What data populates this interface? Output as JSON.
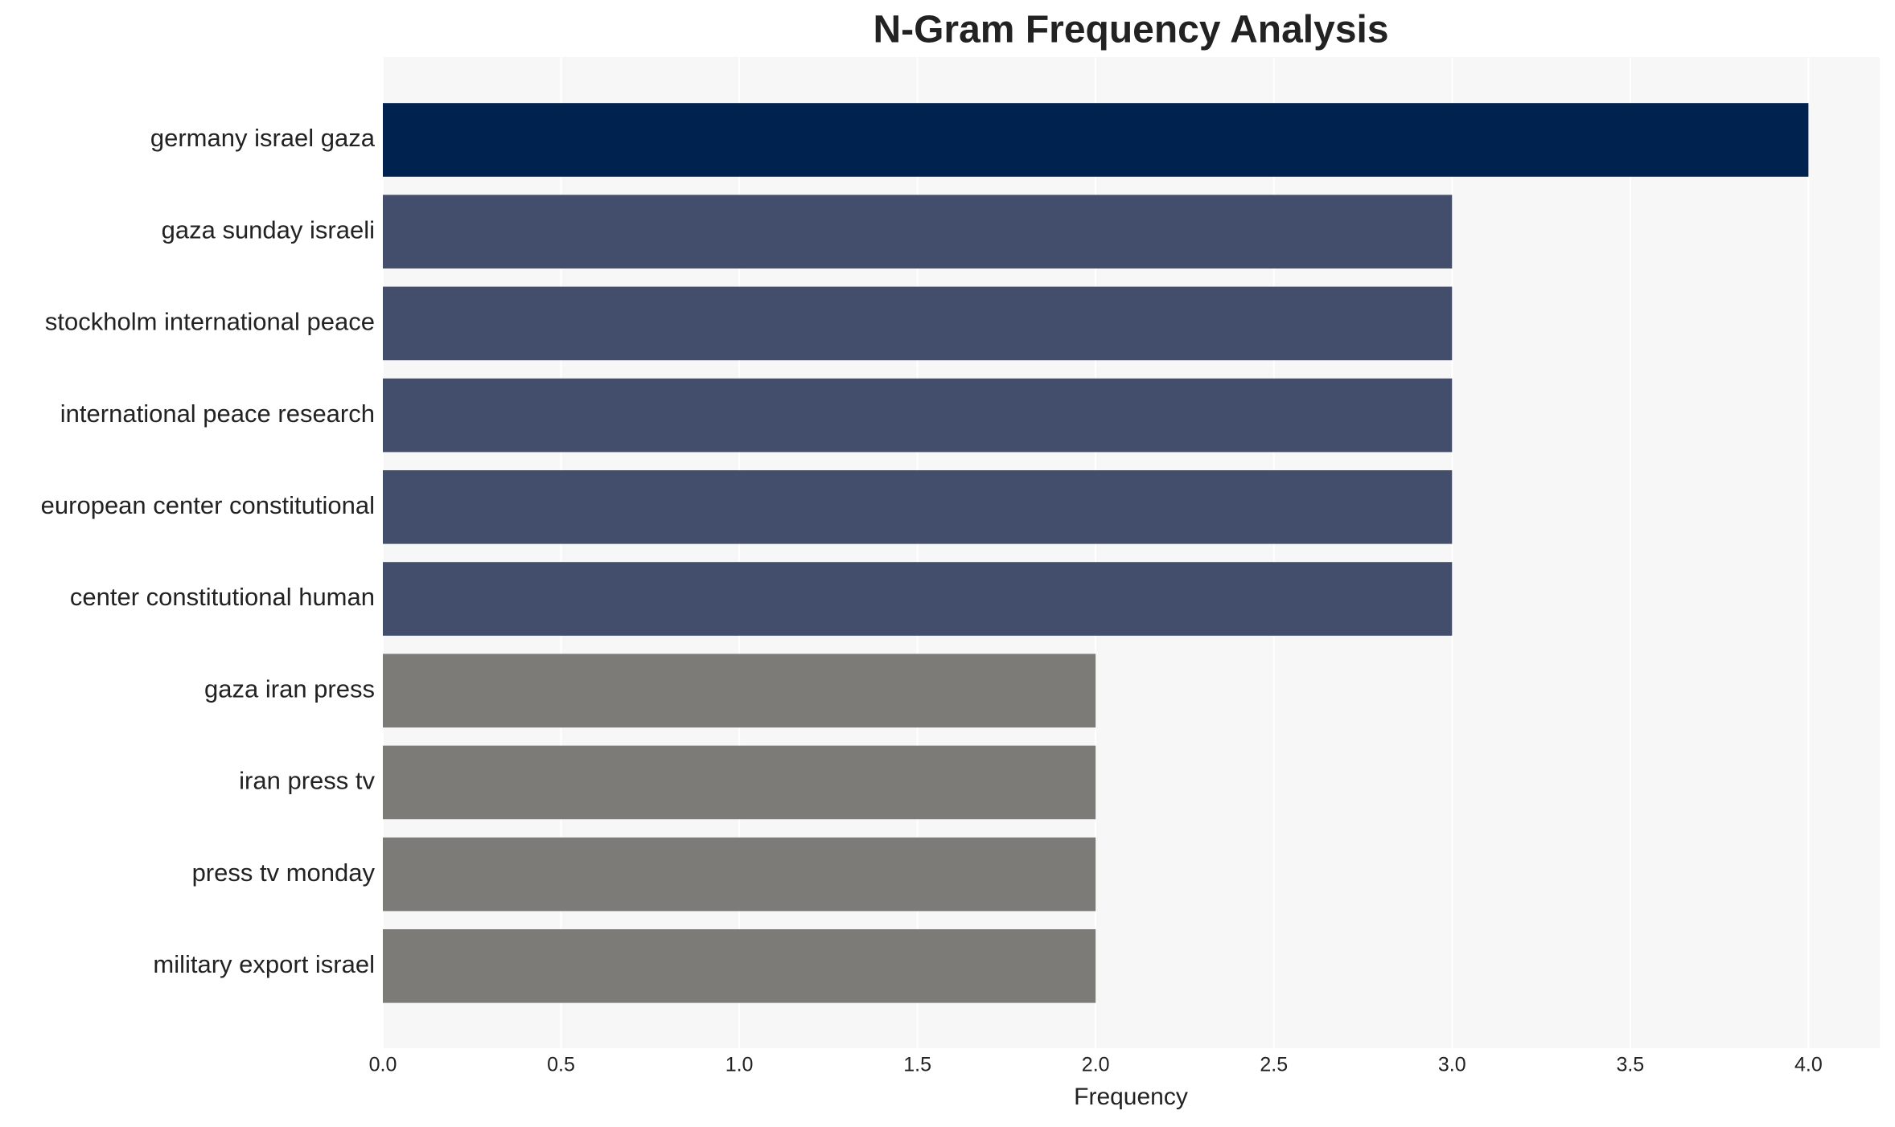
{
  "chart_data": {
    "type": "bar",
    "orientation": "horizontal",
    "title": "N-Gram Frequency Analysis",
    "xlabel": "Frequency",
    "categories": [
      "germany israel gaza",
      "gaza sunday israeli",
      "stockholm international peace",
      "international peace research",
      "european center constitutional",
      "center constitutional human",
      "gaza iran press",
      "iran press tv",
      "press tv monday",
      "military export israel"
    ],
    "values": [
      4,
      3,
      3,
      3,
      3,
      3,
      2,
      2,
      2,
      2
    ],
    "colors": [
      "#00224e",
      "#434e6c",
      "#434e6c",
      "#434e6c",
      "#434e6c",
      "#434e6c",
      "#7c7b78",
      "#7c7b78",
      "#7c7b78",
      "#7c7b78"
    ],
    "xlim": [
      0,
      4.2
    ],
    "xticks": [
      {
        "value": 0,
        "label": "0.0"
      },
      {
        "value": 0.5,
        "label": "0.5"
      },
      {
        "value": 1,
        "label": "1.0"
      },
      {
        "value": 1.5,
        "label": "1.5"
      },
      {
        "value": 2,
        "label": "2.0"
      },
      {
        "value": 2.5,
        "label": "2.5"
      },
      {
        "value": 3,
        "label": "3.0"
      },
      {
        "value": 3.5,
        "label": "3.5"
      },
      {
        "value": 4,
        "label": "4.0"
      }
    ],
    "grid": true
  }
}
